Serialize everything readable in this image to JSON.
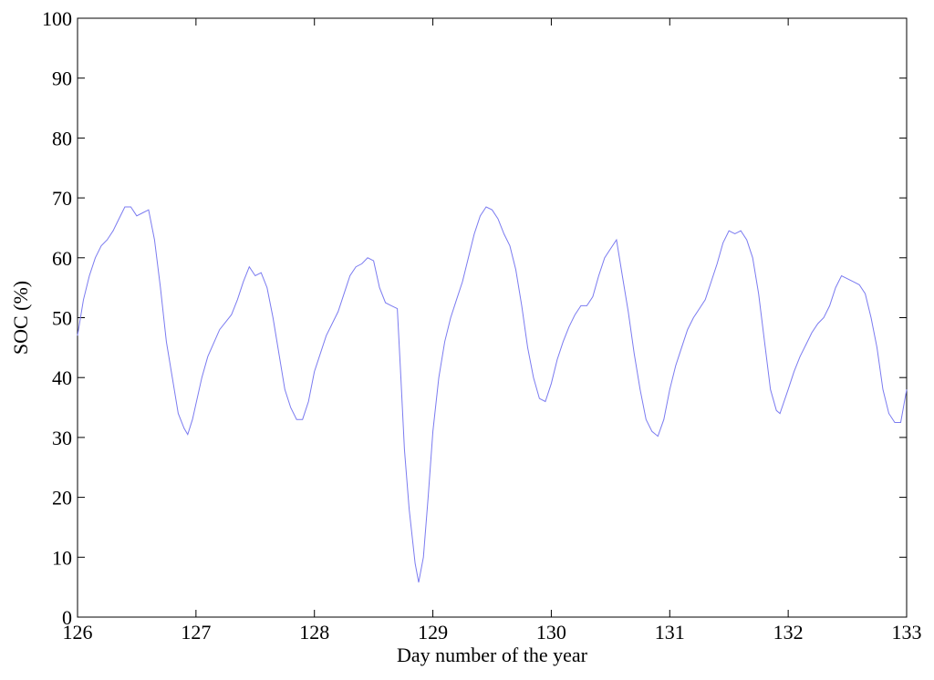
{
  "chart_data": {
    "type": "line",
    "title": "",
    "xlabel": "Day number of the year",
    "ylabel": "SOC (%)",
    "xlim": [
      126,
      133
    ],
    "ylim": [
      0,
      100
    ],
    "xticks": [
      126,
      127,
      128,
      129,
      130,
      131,
      132,
      133
    ],
    "yticks": [
      0,
      10,
      20,
      30,
      40,
      50,
      60,
      70,
      80,
      90,
      100
    ],
    "grid": false,
    "line_color": "#7b7bf0",
    "series": [
      {
        "values": [
          [
            126.0,
            47
          ],
          [
            126.05,
            53
          ],
          [
            126.1,
            57
          ],
          [
            126.15,
            60
          ],
          [
            126.2,
            62
          ],
          [
            126.25,
            63
          ],
          [
            126.3,
            64.5
          ],
          [
            126.35,
            66.5
          ],
          [
            126.4,
            68.5
          ],
          [
            126.45,
            68.5
          ],
          [
            126.5,
            67
          ],
          [
            126.55,
            67.5
          ],
          [
            126.6,
            68
          ],
          [
            126.65,
            63
          ],
          [
            126.7,
            55
          ],
          [
            126.75,
            46
          ],
          [
            126.8,
            40
          ],
          [
            126.85,
            34
          ],
          [
            126.9,
            31.5
          ],
          [
            126.93,
            30.5
          ],
          [
            126.97,
            33
          ],
          [
            127.05,
            40
          ],
          [
            127.1,
            43.5
          ],
          [
            127.2,
            48
          ],
          [
            127.3,
            50.5
          ],
          [
            127.35,
            53
          ],
          [
            127.4,
            56
          ],
          [
            127.45,
            58.5
          ],
          [
            127.5,
            57
          ],
          [
            127.55,
            57.5
          ],
          [
            127.6,
            55
          ],
          [
            127.65,
            50
          ],
          [
            127.7,
            44
          ],
          [
            127.75,
            38
          ],
          [
            127.8,
            35
          ],
          [
            127.85,
            33
          ],
          [
            127.9,
            33
          ],
          [
            127.95,
            36
          ],
          [
            128.0,
            41
          ],
          [
            128.1,
            47
          ],
          [
            128.2,
            51
          ],
          [
            128.25,
            54
          ],
          [
            128.3,
            57
          ],
          [
            128.35,
            58.5
          ],
          [
            128.4,
            59
          ],
          [
            128.45,
            60
          ],
          [
            128.5,
            59.5
          ],
          [
            128.55,
            55
          ],
          [
            128.6,
            52.5
          ],
          [
            128.65,
            52
          ],
          [
            128.7,
            51.5
          ],
          [
            128.73,
            40
          ],
          [
            128.76,
            28
          ],
          [
            128.8,
            18
          ],
          [
            128.85,
            9
          ],
          [
            128.88,
            5.8
          ],
          [
            128.92,
            10
          ],
          [
            128.96,
            20
          ],
          [
            129.0,
            31
          ],
          [
            129.05,
            40
          ],
          [
            129.1,
            46
          ],
          [
            129.15,
            50
          ],
          [
            129.2,
            53
          ],
          [
            129.25,
            56
          ],
          [
            129.3,
            60
          ],
          [
            129.35,
            64
          ],
          [
            129.4,
            67
          ],
          [
            129.45,
            68.5
          ],
          [
            129.5,
            68
          ],
          [
            129.55,
            66.5
          ],
          [
            129.6,
            64
          ],
          [
            129.65,
            62
          ],
          [
            129.7,
            58
          ],
          [
            129.75,
            52
          ],
          [
            129.8,
            45
          ],
          [
            129.85,
            40
          ],
          [
            129.9,
            36.5
          ],
          [
            129.95,
            36
          ],
          [
            130.0,
            39
          ],
          [
            130.05,
            43
          ],
          [
            130.1,
            46
          ],
          [
            130.15,
            48.5
          ],
          [
            130.2,
            50.5
          ],
          [
            130.25,
            52
          ],
          [
            130.3,
            52
          ],
          [
            130.35,
            53.5
          ],
          [
            130.4,
            57
          ],
          [
            130.45,
            60
          ],
          [
            130.5,
            61.5
          ],
          [
            130.55,
            63
          ],
          [
            130.6,
            57
          ],
          [
            130.65,
            51
          ],
          [
            130.7,
            44
          ],
          [
            130.75,
            38
          ],
          [
            130.8,
            33
          ],
          [
            130.85,
            31
          ],
          [
            130.9,
            30.2
          ],
          [
            130.95,
            33
          ],
          [
            131.0,
            38
          ],
          [
            131.05,
            42
          ],
          [
            131.1,
            45
          ],
          [
            131.15,
            48
          ],
          [
            131.2,
            50
          ],
          [
            131.25,
            51.5
          ],
          [
            131.3,
            53
          ],
          [
            131.35,
            56
          ],
          [
            131.4,
            59
          ],
          [
            131.45,
            62.5
          ],
          [
            131.5,
            64.5
          ],
          [
            131.55,
            64
          ],
          [
            131.6,
            64.5
          ],
          [
            131.65,
            63
          ],
          [
            131.7,
            60
          ],
          [
            131.75,
            54
          ],
          [
            131.8,
            46
          ],
          [
            131.85,
            38
          ],
          [
            131.9,
            34.5
          ],
          [
            131.93,
            34
          ],
          [
            132.0,
            38
          ],
          [
            132.05,
            41
          ],
          [
            132.1,
            43.5
          ],
          [
            132.15,
            45.5
          ],
          [
            132.2,
            47.5
          ],
          [
            132.25,
            49
          ],
          [
            132.3,
            50
          ],
          [
            132.35,
            52
          ],
          [
            132.4,
            55
          ],
          [
            132.45,
            57
          ],
          [
            132.5,
            56.5
          ],
          [
            132.55,
            56
          ],
          [
            132.6,
            55.5
          ],
          [
            132.65,
            54
          ],
          [
            132.7,
            50
          ],
          [
            132.75,
            45
          ],
          [
            132.8,
            38
          ],
          [
            132.85,
            34
          ],
          [
            132.9,
            32.5
          ],
          [
            132.95,
            32.5
          ],
          [
            133.0,
            38
          ]
        ]
      }
    ]
  }
}
